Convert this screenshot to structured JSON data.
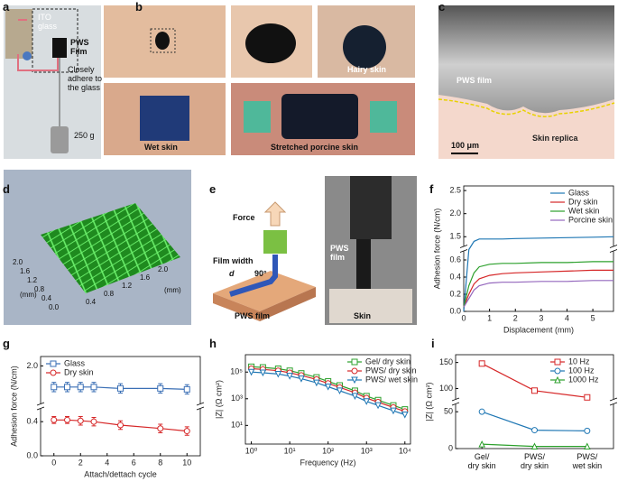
{
  "panel_labels": [
    "a",
    "b",
    "c",
    "d",
    "e",
    "f",
    "g",
    "h",
    "i"
  ],
  "a": {
    "ito": "ITO\nglass",
    "film": "PWS\nFilm",
    "adhere": "Closely\nadhere to\nthe glass",
    "weight": "250 g"
  },
  "b": {
    "hairy": "Hairy skin",
    "wet": "Wet skin",
    "stretched": "Stretched porcine skin"
  },
  "c": {
    "film": "PWS film",
    "replica": "Skin replica",
    "scale": "100 μm"
  },
  "d": {
    "ticks_left": [
      "2.0",
      "1.6",
      "1.2",
      "0.8",
      "0.4",
      "0.0"
    ],
    "ticks_right": [
      "0.4",
      "0.8",
      "1.2",
      "1.6",
      "2.0"
    ],
    "unit_left": "(mm)",
    "unit_right": "(mm)"
  },
  "e": {
    "force": "Force",
    "film_width": "Film width",
    "d": "d",
    "angle": "90°",
    "pws_film": "PWS film",
    "photo_film": "PWS\nfilm",
    "skin": "Skin"
  },
  "chart_data": [
    {
      "type": "line",
      "ylabel": "Adhesion force (N/cm)",
      "xlabel": "Displacement (mm)",
      "x": [
        0,
        0.2,
        0.4,
        0.6,
        1,
        1.5,
        2,
        3,
        4,
        5,
        5.8
      ],
      "xlim": [
        0,
        5.8
      ],
      "xticks": [
        0,
        1,
        2,
        3,
        4,
        5
      ],
      "ylim": [
        0,
        2.6
      ],
      "ybreak": [
        0.7,
        1.3
      ],
      "yticks": [
        {
          "value": 0,
          "label": "0.0"
        },
        0.2,
        0.4,
        0.6,
        1.5,
        {
          "value": 2,
          "label": "2.0"
        },
        2.5
      ],
      "legend": "upper right",
      "series": [
        {
          "name": "Glass",
          "color": "#1f77b4",
          "values": [
            0,
            0.9,
            1.4,
            1.45,
            1.45,
            1.45,
            1.46,
            1.47,
            1.48,
            1.49,
            1.5
          ]
        },
        {
          "name": "Dry skin",
          "color": "#d62728",
          "values": [
            0.05,
            0.2,
            0.32,
            0.38,
            0.42,
            0.44,
            0.45,
            0.46,
            0.47,
            0.48,
            0.48
          ]
        },
        {
          "name": "Wet skin",
          "color": "#2ca02c",
          "values": [
            0.05,
            0.3,
            0.45,
            0.52,
            0.55,
            0.56,
            0.56,
            0.57,
            0.57,
            0.58,
            0.58
          ]
        },
        {
          "name": "Porcine skin",
          "color": "#9467bd",
          "values": [
            0.05,
            0.15,
            0.25,
            0.3,
            0.33,
            0.34,
            0.34,
            0.35,
            0.35,
            0.36,
            0.36
          ]
        }
      ]
    },
    {
      "type": "line",
      "ylabel": "Adhesion force (N/cm)",
      "xlabel": "Attach/dettach cycle",
      "x": [
        0,
        1,
        2,
        3,
        5,
        8,
        10
      ],
      "xlim": [
        -1,
        11
      ],
      "xticks": [
        0,
        2,
        4,
        6,
        8,
        10
      ],
      "ylim": [
        0,
        2.2
      ],
      "ybreak": [
        0.55,
        1.2
      ],
      "yticks": [
        {
          "value": 0,
          "label": "0.0"
        },
        0.4,
        {
          "value": 2,
          "label": "2.0"
        }
      ],
      "legend": "upper left",
      "series": [
        {
          "name": "Glass",
          "color": "#3a6fb5",
          "marker": "square",
          "values": [
            1.55,
            1.55,
            1.55,
            1.55,
            1.52,
            1.52,
            1.5
          ],
          "errors": [
            0.1,
            0.1,
            0.1,
            0.1,
            0.1,
            0.1,
            0.1
          ]
        },
        {
          "name": "Dry skin",
          "color": "#d62728",
          "marker": "circle",
          "values": [
            0.42,
            0.42,
            0.41,
            0.4,
            0.36,
            0.32,
            0.29
          ],
          "errors": [
            0.04,
            0.04,
            0.05,
            0.05,
            0.05,
            0.05,
            0.05
          ]
        }
      ]
    },
    {
      "type": "line",
      "ylabel": "|Z| (Ω cm²)",
      "xlabel": "Frequency (Hz)",
      "log_x": true,
      "log_y": true,
      "x": [
        1,
        2,
        5,
        10,
        20,
        50,
        100,
        200,
        500,
        1000,
        2000,
        5000,
        10000
      ],
      "xlim": [
        0.7,
        14000
      ],
      "xticks": [
        {
          "value": 1,
          "label": "10⁰"
        },
        {
          "value": 10,
          "label": "10¹"
        },
        {
          "value": 100,
          "label": "10²"
        },
        {
          "value": 1000,
          "label": "10³"
        },
        {
          "value": 10000,
          "label": "10⁴"
        }
      ],
      "ylim": [
        0.4,
        2000000
      ],
      "yticks": [
        {
          "value": 10,
          "label": "10¹"
        },
        {
          "value": 1000,
          "label": "10³"
        },
        {
          "value": 100000,
          "label": "10⁵"
        }
      ],
      "legend": "upper right",
      "series": [
        {
          "name": "Gel/ dry skin",
          "color": "#2ca02c",
          "marker": "square",
          "values": [
            251000,
            224000,
            178000,
            126000,
            79400,
            39800,
            20000,
            10000,
            3980,
            1580,
            794,
            316,
            158
          ]
        },
        {
          "name": "PWS/ dry skin",
          "color": "#d62728",
          "marker": "circle",
          "values": [
            178000,
            158000,
            126000,
            89100,
            56200,
            28200,
            14100,
            7080,
            2820,
            1120,
            562,
            224,
            112
          ]
        },
        {
          "name": "PWS/ wet skin",
          "color": "#1f77b4",
          "marker": "triangle-down",
          "values": [
            100000,
            89100,
            70800,
            50100,
            31600,
            15800,
            7940,
            3980,
            1580,
            631,
            316,
            126,
            63
          ]
        }
      ]
    },
    {
      "type": "line",
      "ylabel": "|Z| (Ω cm²)",
      "categories": [
        "Gel/\ndry skin",
        "PWS/\ndry skin",
        "PWS/\nwet skin"
      ],
      "ylim": [
        0,
        165
      ],
      "ybreak": [
        60,
        80
      ],
      "yticks": [
        0,
        50,
        100,
        150
      ],
      "legend": "upper right",
      "series": [
        {
          "name": "10 Hz",
          "color": "#d62728",
          "marker": "square",
          "values": [
            148,
            96,
            83
          ]
        },
        {
          "name": "100 Hz",
          "color": "#1f77b4",
          "marker": "circle",
          "values": [
            50,
            25,
            24
          ]
        },
        {
          "name": "1000 Hz",
          "color": "#2ca02c",
          "marker": "triangle",
          "values": [
            6,
            3,
            3
          ]
        }
      ]
    }
  ]
}
